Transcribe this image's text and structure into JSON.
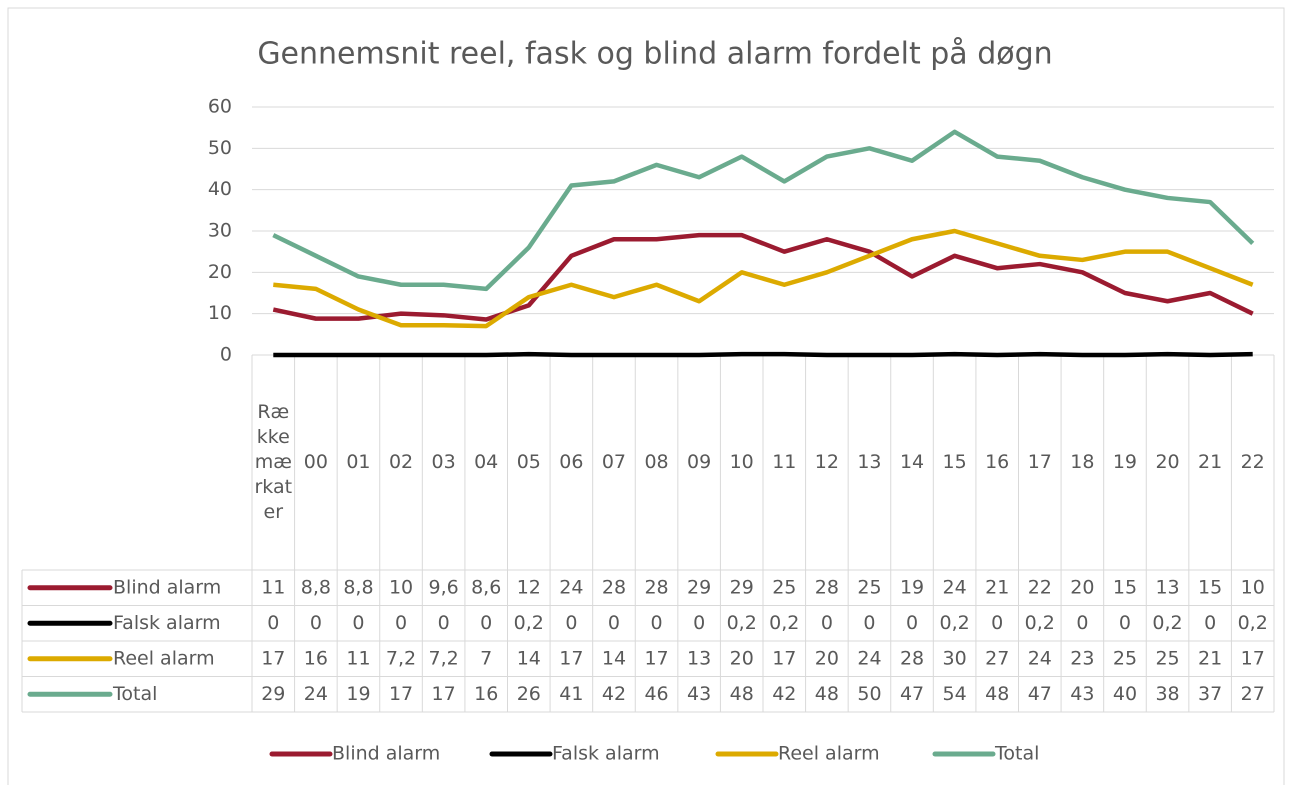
{
  "chart_data": {
    "type": "line",
    "title": "Gennemsnit reel, fask og blind alarm fordelt på døgn",
    "categories": [
      "Rækkemærkater",
      "00",
      "01",
      "02",
      "03",
      "04",
      "05",
      "06",
      "07",
      "08",
      "09",
      "10",
      "11",
      "12",
      "13",
      "14",
      "15",
      "16",
      "17",
      "18",
      "19",
      "20",
      "21",
      "22"
    ],
    "series": [
      {
        "name": "Blind alarm",
        "color": "#9b1b30",
        "values": [
          11,
          8.8,
          8.8,
          10,
          9.6,
          8.6,
          12,
          24,
          28,
          28,
          29,
          29,
          25,
          28,
          25,
          19,
          24,
          21,
          22,
          20,
          15,
          13,
          15,
          10
        ],
        "value_labels": [
          "11",
          "8,8",
          "8,8",
          "10",
          "9,6",
          "8,6",
          "12",
          "24",
          "28",
          "28",
          "29",
          "29",
          "25",
          "28",
          "25",
          "19",
          "24",
          "21",
          "22",
          "20",
          "15",
          "13",
          "15",
          "10"
        ]
      },
      {
        "name": "Falsk alarm",
        "color": "#000000",
        "values": [
          0,
          0,
          0,
          0,
          0,
          0,
          0.2,
          0,
          0,
          0,
          0,
          0.2,
          0.2,
          0,
          0,
          0,
          0.2,
          0,
          0.2,
          0,
          0,
          0.2,
          0,
          0.2
        ],
        "value_labels": [
          "0",
          "0",
          "0",
          "0",
          "0",
          "0",
          "0,2",
          "0",
          "0",
          "0",
          "0",
          "0,2",
          "0,2",
          "0",
          "0",
          "0",
          "0,2",
          "0",
          "0,2",
          "0",
          "0",
          "0,2",
          "0",
          "0,2"
        ]
      },
      {
        "name": "Reel alarm",
        "color": "#dcaa00",
        "values": [
          17,
          16,
          11,
          7.2,
          7.2,
          7,
          14,
          17,
          14,
          17,
          13,
          20,
          17,
          20,
          24,
          28,
          30,
          27,
          24,
          23,
          25,
          25,
          21,
          17
        ],
        "value_labels": [
          "17",
          "16",
          "11",
          "7,2",
          "7,2",
          "7",
          "14",
          "17",
          "14",
          "17",
          "13",
          "20",
          "17",
          "20",
          "24",
          "28",
          "30",
          "27",
          "24",
          "23",
          "25",
          "25",
          "21",
          "17"
        ]
      },
      {
        "name": "Total",
        "color": "#6aab8e",
        "values": [
          29,
          24,
          19,
          17,
          17,
          16,
          26,
          41,
          42,
          46,
          43,
          48,
          42,
          48,
          50,
          47,
          54,
          48,
          47,
          43,
          40,
          38,
          37,
          27
        ],
        "value_labels": [
          "29",
          "24",
          "19",
          "17",
          "17",
          "16",
          "26",
          "41",
          "42",
          "46",
          "43",
          "48",
          "42",
          "48",
          "50",
          "47",
          "54",
          "48",
          "47",
          "43",
          "40",
          "38",
          "37",
          "27"
        ]
      }
    ],
    "ylim": [
      0,
      60
    ],
    "yticks": [
      0,
      10,
      20,
      30,
      40,
      50,
      60
    ],
    "grid": true,
    "legend": "bottom",
    "data_table": true
  }
}
